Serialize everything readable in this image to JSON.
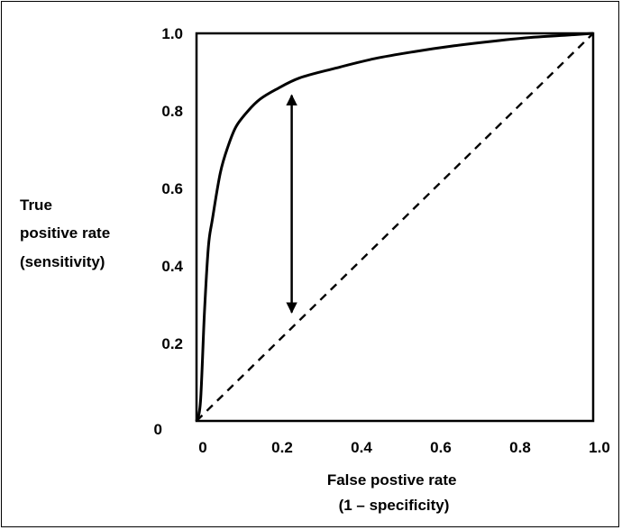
{
  "chart_data": {
    "type": "line",
    "xlabel_lines": [
      "False postive rate",
      "(1 – specificity)"
    ],
    "ylabel_lines": [
      "True",
      "positive rate",
      "(sensitivity)"
    ],
    "xlim": [
      0,
      1
    ],
    "ylim": [
      0,
      1
    ],
    "x_ticks": [
      {
        "value": 0,
        "label": "0"
      },
      {
        "value": 0.2,
        "label": "0.2"
      },
      {
        "value": 0.4,
        "label": "0.4"
      },
      {
        "value": 0.6,
        "label": "0.6"
      },
      {
        "value": 0.8,
        "label": "0.8"
      },
      {
        "value": 1.0,
        "label": "1.0"
      }
    ],
    "y_ticks": [
      {
        "value": 0,
        "label": "0"
      },
      {
        "value": 0.2,
        "label": "0.2"
      },
      {
        "value": 0.4,
        "label": "0.4"
      },
      {
        "value": 0.6,
        "label": "0.6"
      },
      {
        "value": 0.8,
        "label": "0.8"
      },
      {
        "value": 1.0,
        "label": "1.0"
      }
    ],
    "grid": false,
    "legend": "none",
    "series": [
      {
        "style": "solid",
        "x": [
          0,
          0.01,
          0.02,
          0.03,
          0.04,
          0.06,
          0.08,
          0.1,
          0.13,
          0.16,
          0.2,
          0.26,
          0.35,
          0.45,
          0.55,
          0.65,
          0.75,
          0.85,
          0.93,
          1.0
        ],
        "y": [
          0,
          0.05,
          0.28,
          0.45,
          0.52,
          0.64,
          0.71,
          0.76,
          0.8,
          0.83,
          0.855,
          0.885,
          0.91,
          0.935,
          0.953,
          0.968,
          0.98,
          0.99,
          0.995,
          1.0
        ]
      },
      {
        "style": "dashed",
        "x": [
          0,
          1
        ],
        "y": [
          0,
          1
        ]
      }
    ],
    "annotations": [
      {
        "type": "double-arrow",
        "x": 0.24,
        "y_from": 0.28,
        "y_to": 0.84
      }
    ],
    "colors": {
      "line": "#000000",
      "background": "#ffffff"
    }
  }
}
